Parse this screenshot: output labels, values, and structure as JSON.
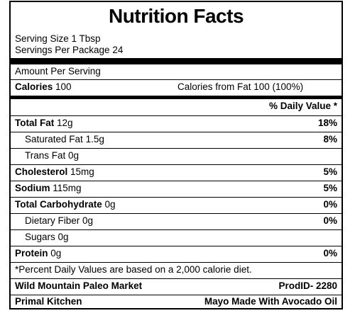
{
  "title": "Nutrition Facts",
  "serving_size": "Serving Size 1 Tbsp",
  "servings_per_package": "Servings Per Package 24",
  "amount_per_serving": "Amount Per Serving",
  "calories": {
    "label": "Calories",
    "value": "100"
  },
  "calories_from_fat": "Calories from Fat 100 (100%)",
  "daily_value_header": "% Daily Value *",
  "nutrients": [
    {
      "label": "Total Fat",
      "amount": "12g",
      "dv": "18%"
    },
    {
      "label": "Saturated Fat",
      "amount": "1.5g",
      "dv": "8%"
    },
    {
      "label": "Trans Fat",
      "amount": "0g",
      "dv": ""
    },
    {
      "label": "Cholesterol",
      "amount": "15mg",
      "dv": "5%"
    },
    {
      "label": "Sodium",
      "amount": "115mg",
      "dv": "5%"
    },
    {
      "label": "Total Carbohydrate",
      "amount": "0g",
      "dv": "0%"
    },
    {
      "label": "Dietary Fiber",
      "amount": "0g",
      "dv": "0%"
    },
    {
      "label": "Sugars",
      "amount": "0g",
      "dv": ""
    },
    {
      "label": "Protein",
      "amount": "0g",
      "dv": "0%"
    }
  ],
  "footnote": "*Percent Daily Values are based on a 2,000 calorie diet.",
  "store": {
    "name": "Wild Mountain Paleo Market",
    "prod_id": "ProdID- 2280"
  },
  "brand": {
    "name": "Primal Kitchen",
    "product": "Mayo Made With Avocado Oil"
  }
}
